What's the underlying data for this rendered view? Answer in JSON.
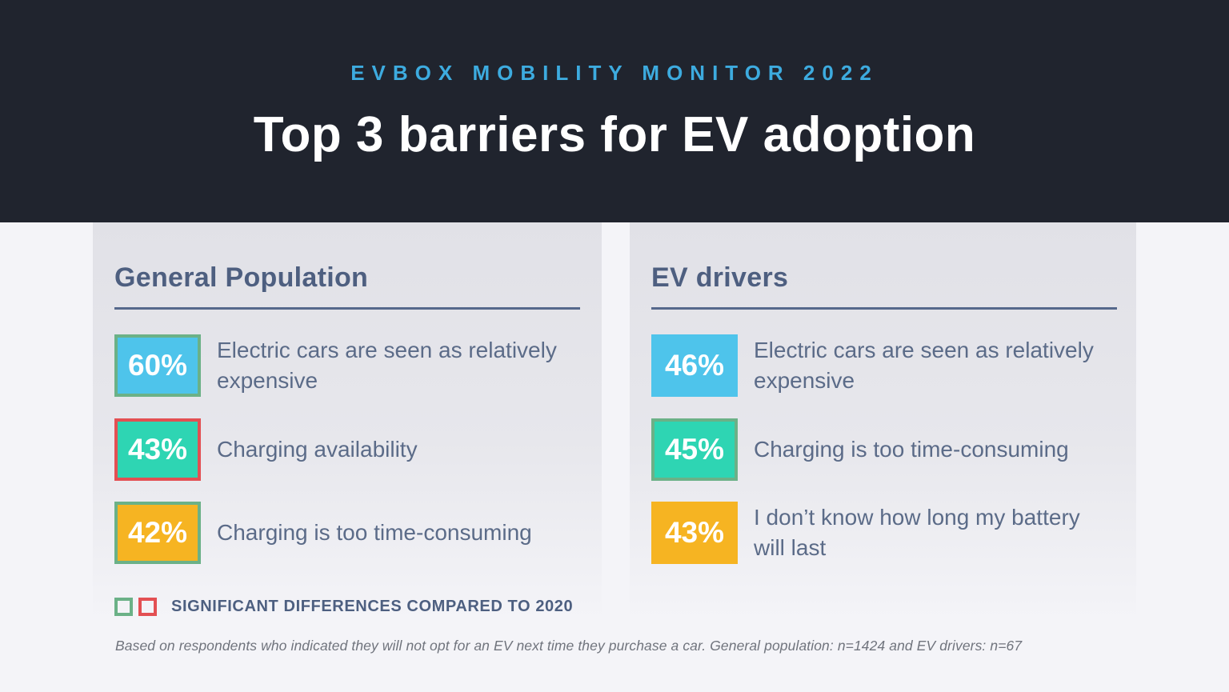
{
  "header": {
    "eyebrow": "EVBOX MOBILITY MONITOR 2022",
    "title": "Top 3 barriers for EV adoption"
  },
  "colors": {
    "header_background": "#20242E",
    "eyebrow_cyan": "#3DABDF",
    "page_background": "#F4F4F8",
    "panel_background_top": "#E1E1E7",
    "panel_background_bottom": "#F4F4F8",
    "slate_text": "#5B6B88",
    "panel_title_text": "#4E5F80",
    "box_blue": "#4EC4EB",
    "box_teal": "#2ED5B3",
    "box_orange": "#F6B422",
    "significant_green": "#6BB187",
    "significant_red": "#E35053"
  },
  "legend": {
    "label": "SIGNIFICANT DIFFERENCES COMPARED TO 2020",
    "square_colors": [
      "#6BB187",
      "#E35053"
    ]
  },
  "footnote": "Based on respondents who indicated they will not opt for an EV next time they purchase a car. General population: n=1424 and EV drivers: n=67",
  "chart_data": {
    "type": "bar",
    "title": "Top 3 barriers for EV adoption",
    "subtitle": "EVBOX MOBILITY MONITOR 2022",
    "unit": "%",
    "legend": "SIGNIFICANT DIFFERENCES COMPARED TO 2020",
    "series": [
      {
        "name": "General Population",
        "n": 1424,
        "points": [
          {
            "label": "Electric cars are seen as relatively expensive",
            "value": 60,
            "value_label": "60%",
            "fill": "#4EC4EB",
            "border": "#6BB187",
            "significant_vs_2020": "green"
          },
          {
            "label": "Charging availability",
            "value": 43,
            "value_label": "43%",
            "fill": "#2ED5B3",
            "border": "#E35053",
            "significant_vs_2020": "red"
          },
          {
            "label": "Charging is too time-consuming",
            "value": 42,
            "value_label": "42%",
            "fill": "#F6B422",
            "border": "#6BB187",
            "significant_vs_2020": "green"
          }
        ]
      },
      {
        "name": "EV drivers",
        "n": 67,
        "points": [
          {
            "label": "Electric cars are seen as relatively expensive",
            "value": 46,
            "value_label": "46%",
            "fill": "#4EC4EB",
            "border": null,
            "significant_vs_2020": null
          },
          {
            "label": "Charging is too time-consuming",
            "value": 45,
            "value_label": "45%",
            "fill": "#2ED5B3",
            "border": "#6BB187",
            "significant_vs_2020": "green"
          },
          {
            "label": "I don’t know how long my battery will last",
            "value": 43,
            "value_label": "43%",
            "fill": "#F6B422",
            "border": null,
            "significant_vs_2020": null
          }
        ]
      }
    ]
  }
}
